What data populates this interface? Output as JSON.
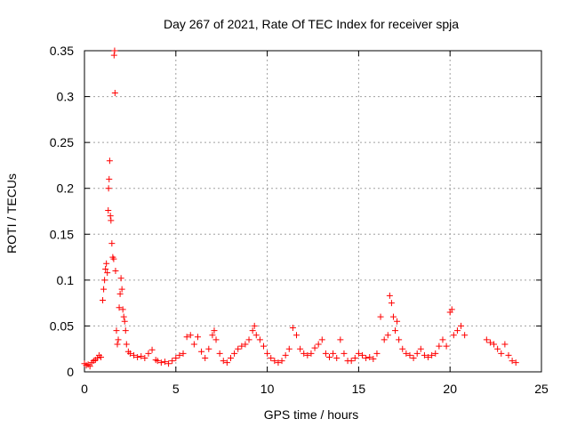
{
  "chart_data": {
    "type": "scatter",
    "title": "Day 267 of 2021, Rate Of TEC Index for receiver spja",
    "xlabel": "GPS time / hours",
    "ylabel": "ROTI / TECUs",
    "xlim": [
      0,
      25
    ],
    "ylim": [
      0,
      0.35
    ],
    "x_ticks": [
      "0",
      "5",
      "10",
      "15",
      "20",
      "25"
    ],
    "y_ticks": [
      "0",
      "0.05",
      "0.1",
      "0.15",
      "0.2",
      "0.25",
      "0.3",
      "0.35"
    ],
    "grid": true,
    "marker": "+",
    "series": [
      {
        "color": "#ff0000",
        "points": [
          [
            0.0,
            0.009
          ],
          [
            0.1,
            0.007
          ],
          [
            0.2,
            0.008
          ],
          [
            0.3,
            0.006
          ],
          [
            0.4,
            0.01
          ],
          [
            0.5,
            0.012
          ],
          [
            0.6,
            0.013
          ],
          [
            0.7,
            0.015
          ],
          [
            0.8,
            0.018
          ],
          [
            0.9,
            0.016
          ],
          [
            1.0,
            0.078
          ],
          [
            1.05,
            0.09
          ],
          [
            1.1,
            0.1
          ],
          [
            1.15,
            0.112
          ],
          [
            1.2,
            0.118
          ],
          [
            1.25,
            0.108
          ],
          [
            1.3,
            0.176
          ],
          [
            1.32,
            0.2
          ],
          [
            1.35,
            0.21
          ],
          [
            1.38,
            0.23
          ],
          [
            1.42,
            0.17
          ],
          [
            1.45,
            0.165
          ],
          [
            1.5,
            0.14
          ],
          [
            1.55,
            0.125
          ],
          [
            1.6,
            0.123
          ],
          [
            1.62,
            0.345
          ],
          [
            1.65,
            0.35
          ],
          [
            1.67,
            0.304
          ],
          [
            1.7,
            0.11
          ],
          [
            1.75,
            0.045
          ],
          [
            1.8,
            0.03
          ],
          [
            1.85,
            0.035
          ],
          [
            1.9,
            0.07
          ],
          [
            1.95,
            0.085
          ],
          [
            2.0,
            0.102
          ],
          [
            2.05,
            0.09
          ],
          [
            2.1,
            0.068
          ],
          [
            2.15,
            0.06
          ],
          [
            2.2,
            0.055
          ],
          [
            2.25,
            0.045
          ],
          [
            2.3,
            0.03
          ],
          [
            2.4,
            0.022
          ],
          [
            2.5,
            0.02
          ],
          [
            2.7,
            0.018
          ],
          [
            2.9,
            0.016
          ],
          [
            3.1,
            0.017
          ],
          [
            3.3,
            0.015
          ],
          [
            3.5,
            0.02
          ],
          [
            3.7,
            0.024
          ],
          [
            3.9,
            0.013
          ],
          [
            4.0,
            0.012
          ],
          [
            4.2,
            0.01
          ],
          [
            4.4,
            0.011
          ],
          [
            4.6,
            0.009
          ],
          [
            4.8,
            0.012
          ],
          [
            5.0,
            0.015
          ],
          [
            5.2,
            0.018
          ],
          [
            5.4,
            0.02
          ],
          [
            5.6,
            0.038
          ],
          [
            5.8,
            0.04
          ],
          [
            6.0,
            0.03
          ],
          [
            6.2,
            0.038
          ],
          [
            6.4,
            0.022
          ],
          [
            6.6,
            0.015
          ],
          [
            6.8,
            0.025
          ],
          [
            7.0,
            0.04
          ],
          [
            7.1,
            0.045
          ],
          [
            7.2,
            0.035
          ],
          [
            7.4,
            0.02
          ],
          [
            7.6,
            0.012
          ],
          [
            7.8,
            0.01
          ],
          [
            8.0,
            0.015
          ],
          [
            8.2,
            0.02
          ],
          [
            8.4,
            0.025
          ],
          [
            8.6,
            0.028
          ],
          [
            8.8,
            0.03
          ],
          [
            9.0,
            0.035
          ],
          [
            9.2,
            0.045
          ],
          [
            9.3,
            0.05
          ],
          [
            9.4,
            0.04
          ],
          [
            9.6,
            0.035
          ],
          [
            9.8,
            0.028
          ],
          [
            10.0,
            0.02
          ],
          [
            10.2,
            0.015
          ],
          [
            10.4,
            0.012
          ],
          [
            10.6,
            0.01
          ],
          [
            10.8,
            0.012
          ],
          [
            11.0,
            0.018
          ],
          [
            11.2,
            0.025
          ],
          [
            11.4,
            0.048
          ],
          [
            11.6,
            0.04
          ],
          [
            11.8,
            0.025
          ],
          [
            12.0,
            0.02
          ],
          [
            12.2,
            0.018
          ],
          [
            12.4,
            0.02
          ],
          [
            12.6,
            0.026
          ],
          [
            12.8,
            0.03
          ],
          [
            13.0,
            0.035
          ],
          [
            13.2,
            0.02
          ],
          [
            13.4,
            0.016
          ],
          [
            13.6,
            0.02
          ],
          [
            13.8,
            0.015
          ],
          [
            14.0,
            0.035
          ],
          [
            14.2,
            0.02
          ],
          [
            14.4,
            0.012
          ],
          [
            14.6,
            0.012
          ],
          [
            14.8,
            0.015
          ],
          [
            15.0,
            0.02
          ],
          [
            15.2,
            0.018
          ],
          [
            15.4,
            0.015
          ],
          [
            15.6,
            0.016
          ],
          [
            15.8,
            0.014
          ],
          [
            16.0,
            0.02
          ],
          [
            16.2,
            0.06
          ],
          [
            16.4,
            0.035
          ],
          [
            16.6,
            0.04
          ],
          [
            16.7,
            0.083
          ],
          [
            16.8,
            0.075
          ],
          [
            16.9,
            0.06
          ],
          [
            17.0,
            0.045
          ],
          [
            17.1,
            0.055
          ],
          [
            17.2,
            0.035
          ],
          [
            17.4,
            0.025
          ],
          [
            17.6,
            0.02
          ],
          [
            17.8,
            0.018
          ],
          [
            18.0,
            0.015
          ],
          [
            18.2,
            0.02
          ],
          [
            18.4,
            0.025
          ],
          [
            18.6,
            0.018
          ],
          [
            18.8,
            0.016
          ],
          [
            19.0,
            0.018
          ],
          [
            19.2,
            0.02
          ],
          [
            19.4,
            0.028
          ],
          [
            19.6,
            0.035
          ],
          [
            19.8,
            0.028
          ],
          [
            20.0,
            0.065
          ],
          [
            20.1,
            0.068
          ],
          [
            20.2,
            0.04
          ],
          [
            20.4,
            0.045
          ],
          [
            20.6,
            0.05
          ],
          [
            20.8,
            0.04
          ],
          [
            22.0,
            0.035
          ],
          [
            22.2,
            0.032
          ],
          [
            22.4,
            0.03
          ],
          [
            22.6,
            0.025
          ],
          [
            22.8,
            0.02
          ],
          [
            23.0,
            0.03
          ],
          [
            23.2,
            0.018
          ],
          [
            23.4,
            0.012
          ],
          [
            23.6,
            0.01
          ]
        ]
      }
    ]
  }
}
